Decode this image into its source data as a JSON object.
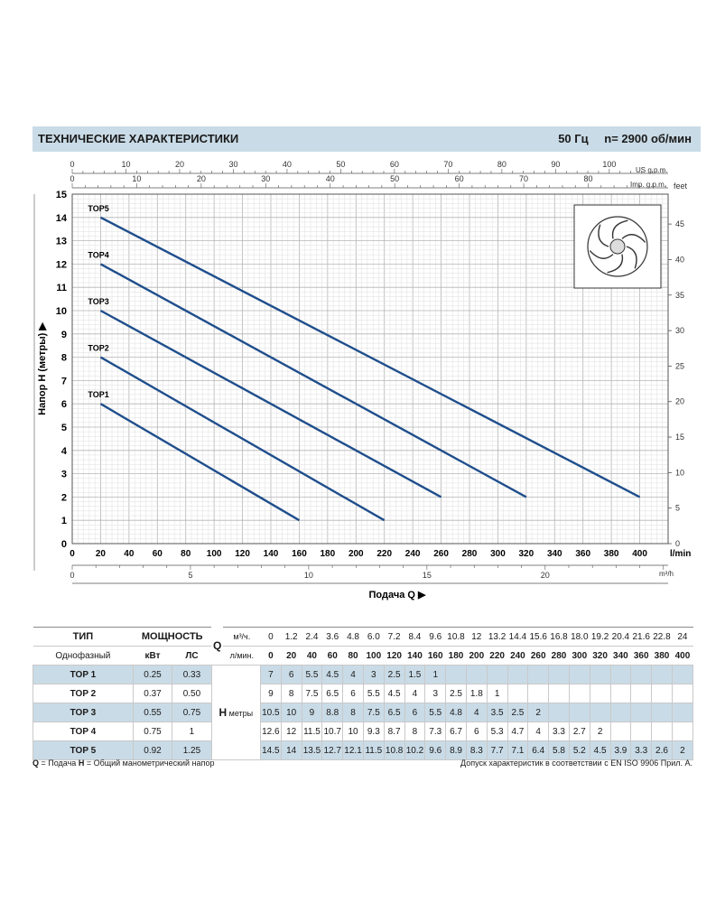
{
  "header": {
    "title": "ТЕХНИЧЕСКИЕ ХАРАКТЕРИСТИКИ",
    "freq": "50 Гц",
    "speed": "n= 2900 об/мин"
  },
  "chart_data": {
    "type": "line",
    "ylabel": "Напор H (метры)",
    "xlabel": "Подача Q",
    "ylim": [
      0,
      15
    ],
    "y_ticks": [
      "0",
      "1",
      "2",
      "3",
      "4",
      "5",
      "6",
      "7",
      "8",
      "9",
      "10",
      "11",
      "12",
      "13",
      "14",
      "15"
    ],
    "x_lmin_ticks": [
      "0",
      "20",
      "40",
      "60",
      "80",
      "100",
      "120",
      "140",
      "160",
      "180",
      "200",
      "220",
      "240",
      "260",
      "280",
      "300",
      "320",
      "340",
      "360",
      "380",
      "400"
    ],
    "x_lmin_unit": "l/min",
    "x_m3h_ticks": [
      "0",
      "5",
      "10",
      "15",
      "20"
    ],
    "x_m3h_unit": "m³/h",
    "us_gpm_ticks": [
      "0",
      "10",
      "20",
      "30",
      "40",
      "50",
      "60",
      "70",
      "80",
      "90",
      "100"
    ],
    "us_gpm_unit": "US g.p.m.",
    "imp_gpm_ticks": [
      "0",
      "10",
      "20",
      "30",
      "40",
      "50",
      "60",
      "70",
      "80"
    ],
    "imp_gpm_unit": "Imp. g.p.m.",
    "feet_ticks": [
      "0",
      "5",
      "10",
      "15",
      "20",
      "25",
      "30",
      "35",
      "40",
      "45"
    ],
    "feet_unit": "feet",
    "grid": true,
    "series": [
      {
        "name": "TOP1",
        "x": [
          20,
          160
        ],
        "y": [
          6,
          1
        ]
      },
      {
        "name": "TOP2",
        "x": [
          20,
          220
        ],
        "y": [
          8,
          1
        ]
      },
      {
        "name": "TOP3",
        "x": [
          20,
          260
        ],
        "y": [
          10,
          2
        ]
      },
      {
        "name": "TOP4",
        "x": [
          20,
          320
        ],
        "y": [
          12,
          2
        ]
      },
      {
        "name": "TOP5",
        "x": [
          20,
          400
        ],
        "y": [
          14,
          2
        ]
      }
    ],
    "line_color": "#1f4e8c"
  },
  "table": {
    "col_type": "ТИП",
    "col_power": "МОЩНОСТЬ",
    "q_label": "Q",
    "q_m3h_unit": "м³/ч.",
    "q_lmin_unit": "л/мин.",
    "phase": "Однофазный",
    "kw": "кВт",
    "hp": "ЛС",
    "h_label": "H",
    "h_unit": "метры",
    "q_m3h": [
      "0",
      "1.2",
      "2.4",
      "3.6",
      "4.8",
      "6.0",
      "7.2",
      "8.4",
      "9.6",
      "10.8",
      "12",
      "13.2",
      "14.4",
      "15.6",
      "16.8",
      "18.0",
      "19.2",
      "20.4",
      "21.6",
      "22.8",
      "24"
    ],
    "q_lmin": [
      "0",
      "20",
      "40",
      "60",
      "80",
      "100",
      "120",
      "140",
      "160",
      "180",
      "200",
      "220",
      "240",
      "260",
      "280",
      "300",
      "320",
      "340",
      "360",
      "380",
      "400"
    ],
    "rows": [
      {
        "model": "TOP 1",
        "kw": "0.25",
        "hp": "0.33",
        "h": [
          "7",
          "6",
          "5.5",
          "4.5",
          "4",
          "3",
          "2.5",
          "1.5",
          "1",
          "",
          "",
          "",
          "",
          "",
          "",
          "",
          "",
          "",
          "",
          "",
          ""
        ]
      },
      {
        "model": "TOP 2",
        "kw": "0.37",
        "hp": "0.50",
        "h": [
          "9",
          "8",
          "7.5",
          "6.5",
          "6",
          "5.5",
          "4.5",
          "4",
          "3",
          "2.5",
          "1.8",
          "1",
          "",
          "",
          "",
          "",
          "",
          "",
          "",
          "",
          ""
        ]
      },
      {
        "model": "TOP 3",
        "kw": "0.55",
        "hp": "0.75",
        "h": [
          "10.5",
          "10",
          "9",
          "8.8",
          "8",
          "7.5",
          "6.5",
          "6",
          "5.5",
          "4.8",
          "4",
          "3.5",
          "2.5",
          "2",
          "",
          "",
          "",
          "",
          "",
          "",
          ""
        ]
      },
      {
        "model": "TOP 4",
        "kw": "0.75",
        "hp": "1",
        "h": [
          "12.6",
          "12",
          "11.5",
          "10.7",
          "10",
          "9.3",
          "8.7",
          "8",
          "7.3",
          "6.7",
          "6",
          "5.3",
          "4.7",
          "4",
          "3.3",
          "2.7",
          "2",
          "",
          "",
          "",
          ""
        ]
      },
      {
        "model": "TOP 5",
        "kw": "0.92",
        "hp": "1.25",
        "h": [
          "14.5",
          "14",
          "13.5",
          "12.7",
          "12.1",
          "11.5",
          "10.8",
          "10.2",
          "9.6",
          "8.9",
          "8.3",
          "7.7",
          "7.1",
          "6.4",
          "5.8",
          "5.2",
          "4.5",
          "3.9",
          "3.3",
          "2.6",
          "2"
        ]
      }
    ]
  },
  "footer": {
    "q_key": "Q",
    "q_text": " = Подача  ",
    "h_key": "H",
    "h_text": " = Общий манометрический напор",
    "tolerance": "Допуск характеристик в соответствии с EN ISO 9906 Прил. А."
  }
}
